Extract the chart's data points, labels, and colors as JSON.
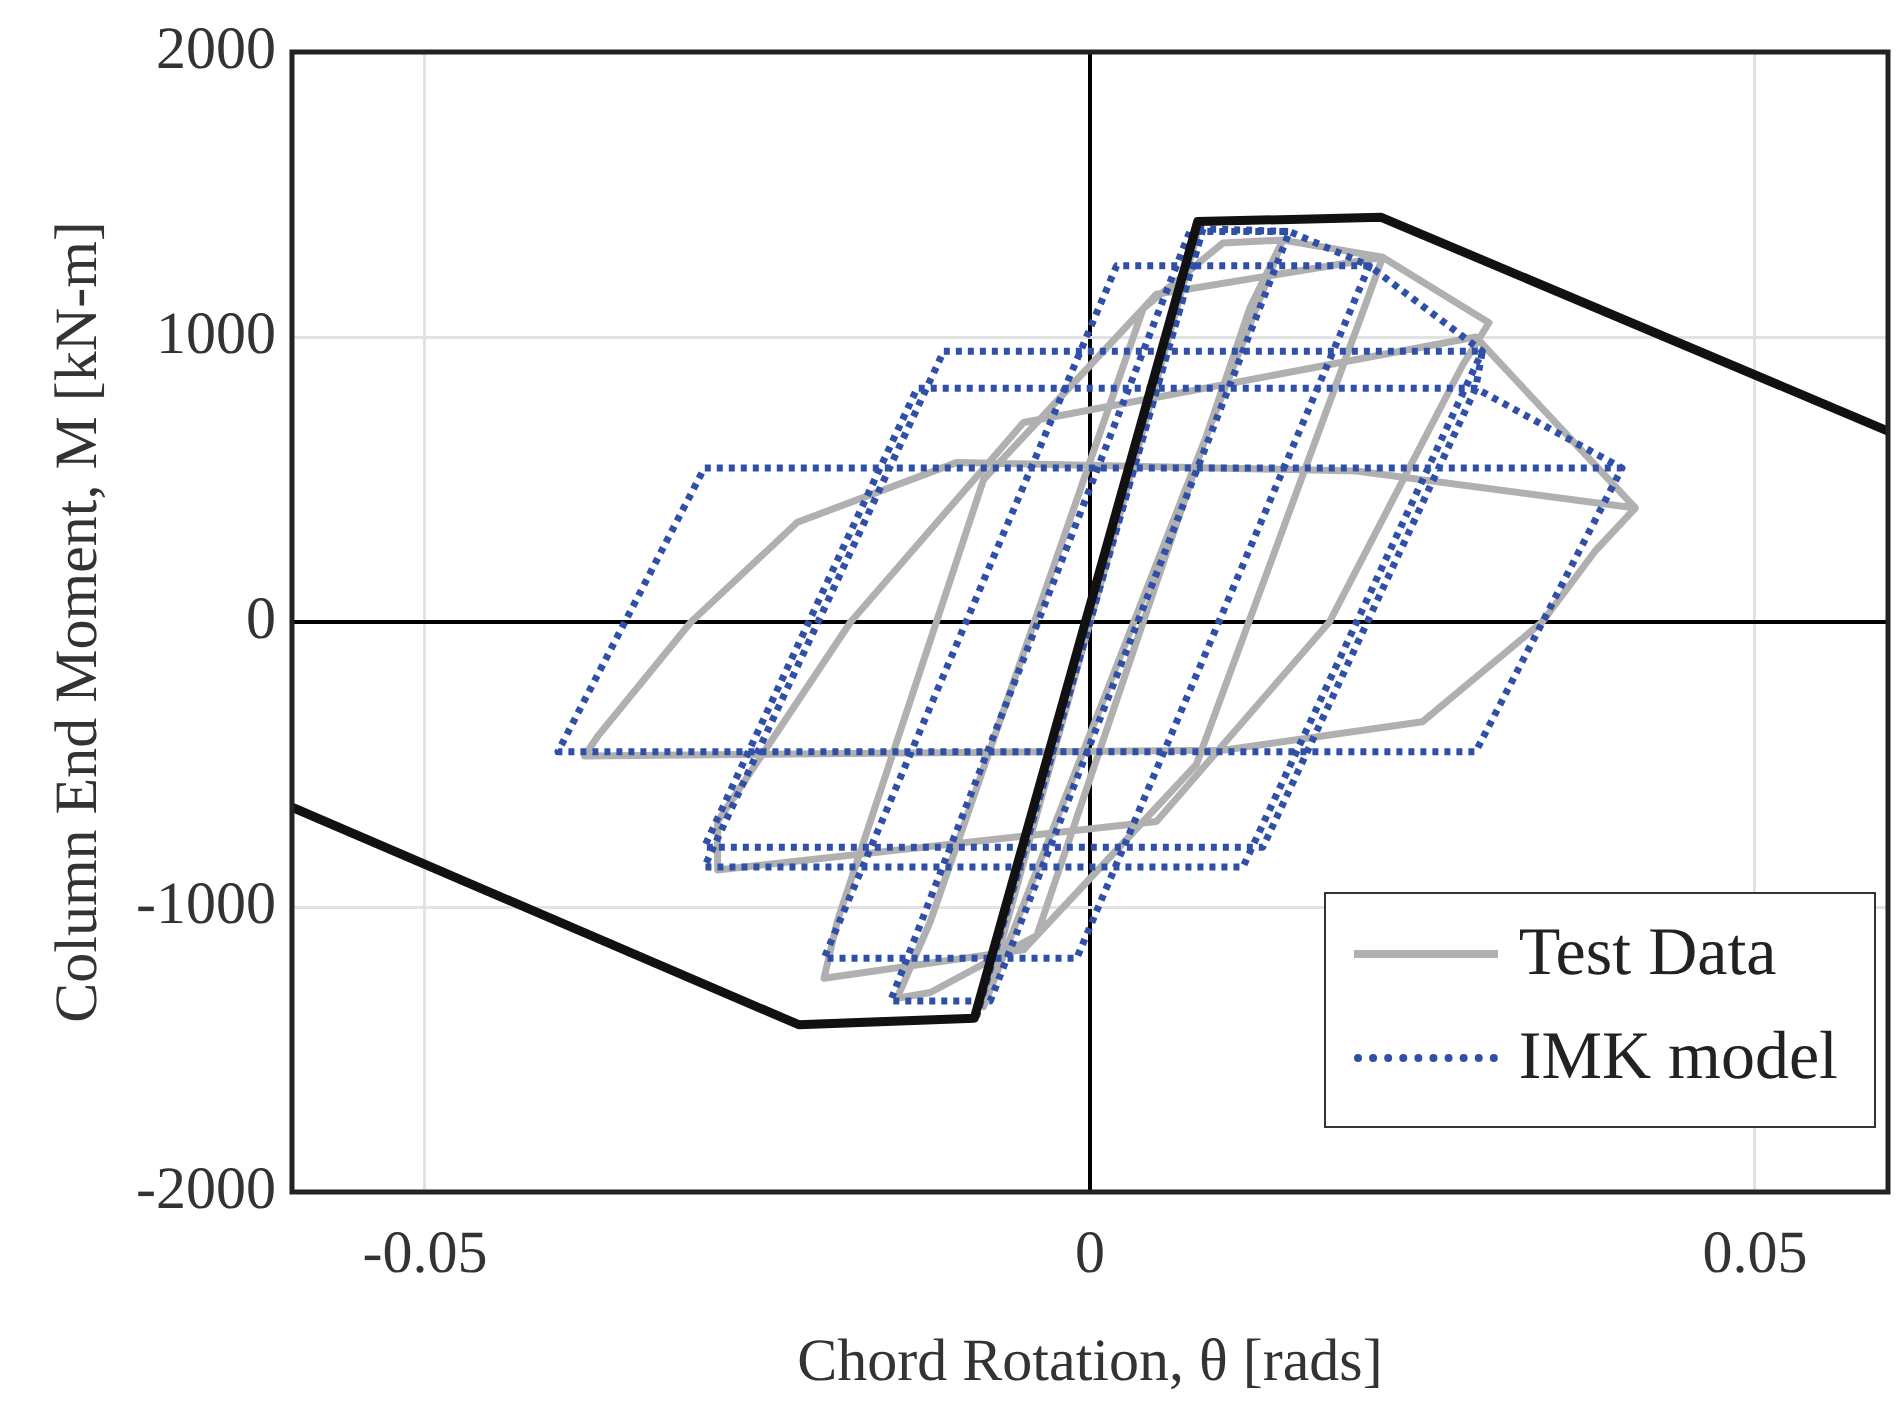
{
  "chart_data": {
    "type": "line",
    "xlabel": "Chord Rotation, θ [rads]",
    "ylabel": "Column End Moment, M [kN-m]",
    "xlim": [
      -0.06,
      0.06
    ],
    "xticks": [
      -0.05,
      0,
      0.05
    ],
    "ylim": [
      -2000,
      2000
    ],
    "yticks": [
      -2000,
      -1000,
      0,
      1000,
      2000
    ],
    "grid": true,
    "legend": "bottom right",
    "marker": "none",
    "series": [
      {
        "name": "Test Data",
        "color": "#b0b0b0",
        "line_style": "solid",
        "x": [
          0.008,
          -0.008,
          0.0145,
          0.012,
          -0.004,
          -0.012,
          -0.0145,
          -0.012,
          0.004,
          0.01,
          0.0145,
          0.022,
          0.021,
          0.008,
          -0.005,
          -0.02,
          -0.019,
          -0.008,
          0.005,
          0.022,
          0.03,
          0.028,
          0.018,
          0.005,
          -0.028,
          -0.028,
          -0.018,
          -0.005,
          0.029,
          0.041,
          0.038,
          0.034,
          0.025,
          0.01,
          -0.038,
          -0.037,
          -0.03,
          -0.022,
          -0.01,
          0.02,
          0.041
        ],
        "values": [
          1350,
          -1350,
          1340,
          1100,
          -1100,
          -1300,
          -1320,
          -1050,
          1100,
          1330,
          1340,
          1280,
          1150,
          -500,
          -1150,
          -1250,
          -1050,
          500,
          1150,
          1280,
          1050,
          900,
          0,
          -700,
          -870,
          -700,
          0,
          700,
          1000,
          400,
          250,
          0,
          -350,
          -450,
          -470,
          -400,
          0,
          350,
          560,
          530,
          400
        ]
      },
      {
        "name": "IMK model",
        "color": "#3050a8",
        "line_style": "dotted",
        "x": [
          0.0085,
          -0.0085,
          0.0085,
          0.015,
          -0.0075,
          -0.015,
          0.0075,
          0.015,
          0.021,
          -0.001,
          -0.02,
          0.002,
          0.021,
          0.0295,
          0.0115,
          -0.029,
          -0.011,
          0.0295,
          0.029,
          0.013,
          -0.029,
          -0.013,
          0.029,
          0.04,
          0.029,
          -0.04,
          -0.029,
          0.04
        ],
        "values": [
          1380,
          -1380,
          1380,
          1370,
          -1330,
          -1330,
          1370,
          1370,
          1250,
          -1180,
          -1180,
          1250,
          1250,
          950,
          -860,
          -860,
          950,
          950,
          820,
          -790,
          -790,
          820,
          820,
          540,
          -455,
          -455,
          540,
          540
        ]
      },
      {
        "color": "#111111",
        "line_style": "solid",
        "x": [
          -0.06,
          -0.0219,
          -0.0087,
          0.0081,
          0.0219,
          0.06
        ],
        "values": [
          -650,
          -1413,
          -1390,
          1405,
          1420,
          670
        ]
      }
    ]
  }
}
